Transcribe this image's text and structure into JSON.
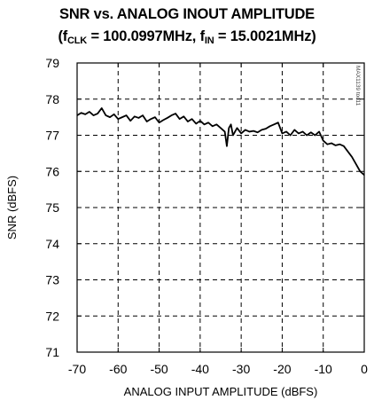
{
  "chart_data": {
    "type": "line",
    "title": "SNR vs. ANALOG INOUT AMPLITUDE",
    "subtitle_parts": {
      "open": "(f",
      "clk_sub": "CLK",
      "clk_value": " = 100.0997MHz, f",
      "in_sub": "IN",
      "in_value": " = 15.0021MHz)"
    },
    "xlabel": "ANALOG INPUT AMPLITUDE (dBFS)",
    "ylabel": "SNR (dBFS)",
    "xlim": [
      -70,
      0
    ],
    "ylim": [
      71,
      79
    ],
    "xticks": [
      -70,
      -60,
      -50,
      -40,
      -30,
      -20,
      -10,
      0
    ],
    "yticks": [
      71,
      72,
      73,
      74,
      75,
      76,
      77,
      78,
      79
    ],
    "grid": "dashed",
    "watermark": "MAX1139 toc11",
    "series": [
      {
        "color": "#000000",
        "x": [
          -70,
          -69,
          -68,
          -67,
          -66,
          -65,
          -64,
          -63,
          -62,
          -61,
          -60,
          -59,
          -58,
          -57,
          -56,
          -55,
          -54,
          -53,
          -52,
          -51,
          -50,
          -49,
          -48,
          -47,
          -46,
          -45,
          -44,
          -43,
          -42,
          -41,
          -40,
          -39,
          -38,
          -37,
          -36,
          -35,
          -34,
          -33.5,
          -33,
          -32.5,
          -32,
          -31,
          -30,
          -29,
          -28,
          -27,
          -26,
          -25,
          -24,
          -23,
          -22,
          -21,
          -20,
          -19,
          -18,
          -17,
          -16,
          -15,
          -14,
          -13,
          -12,
          -11,
          -10,
          -9,
          -8,
          -7,
          -6,
          -5,
          -4,
          -3,
          -2,
          -1,
          0
        ],
        "values": [
          77.55,
          77.62,
          77.58,
          77.65,
          77.55,
          77.6,
          77.75,
          77.55,
          77.5,
          77.58,
          77.45,
          77.5,
          77.55,
          77.4,
          77.52,
          77.48,
          77.55,
          77.38,
          77.45,
          77.5,
          77.35,
          77.42,
          77.48,
          77.55,
          77.6,
          77.45,
          77.52,
          77.38,
          77.45,
          77.32,
          77.4,
          77.3,
          77.35,
          77.25,
          77.3,
          77.2,
          77.1,
          76.7,
          77.2,
          77.3,
          77.0,
          77.2,
          77.05,
          77.15,
          77.1,
          77.12,
          77.08,
          77.15,
          77.18,
          77.25,
          77.3,
          77.35,
          77.05,
          77.1,
          77.0,
          77.15,
          77.05,
          77.1,
          77.0,
          77.08,
          77.0,
          77.1,
          76.85,
          76.75,
          76.78,
          76.72,
          76.75,
          76.7,
          76.55,
          76.4,
          76.2,
          76.0,
          75.9
        ]
      }
    ]
  }
}
